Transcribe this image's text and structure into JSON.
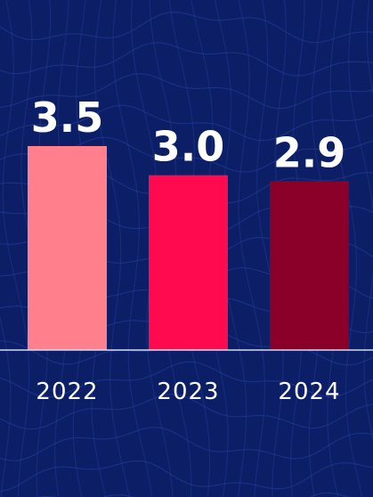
{
  "theme": {
    "background": "#0c1f66",
    "mesh_color": "#2a43a8",
    "baseline_color": "#d6dcf5",
    "label_color": "#ffffff"
  },
  "chart_data": {
    "type": "bar",
    "categories": [
      "2022",
      "2023",
      "2024"
    ],
    "values": [
      3.5,
      3.0,
      2.9
    ],
    "value_labels": [
      "3.5",
      "3.0",
      "2.9"
    ],
    "colors": [
      "#ff7f8c",
      "#ff0a4f",
      "#8b0028"
    ],
    "title": "",
    "xlabel": "",
    "ylabel": "",
    "ylim": [
      0,
      3.5
    ],
    "grid": false,
    "legend": "none"
  }
}
